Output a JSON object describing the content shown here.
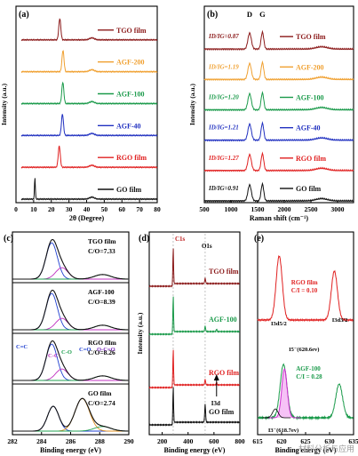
{
  "panels": [
    {
      "letter": "(a)",
      "xlabel": "2θ (Degree)",
      "ylabel": "Intensity (a.u.)",
      "xlim": [
        0,
        80
      ],
      "xticks": [
        0,
        10,
        20,
        30,
        40,
        50,
        60,
        70,
        80
      ],
      "series": [
        {
          "name": "TGO film",
          "color": "#8b1a1a",
          "peak": 24.8
        },
        {
          "name": "AGF-200",
          "color": "#f0a030",
          "peak": 26.6
        },
        {
          "name": "AGF-100",
          "color": "#1a9a4a",
          "peak": 26.5
        },
        {
          "name": "AGF-40",
          "color": "#2030c0",
          "peak": 26.3
        },
        {
          "name": "RGO film",
          "color": "#e02020",
          "peak": 24.5
        },
        {
          "name": "GO film",
          "color": "#111111",
          "peak": 10.7
        }
      ]
    },
    {
      "letter": "(b)",
      "xlabel": "Raman shift (cm⁻¹)",
      "ylabel": "Intensity (a.u.)",
      "xlim": [
        500,
        3300
      ],
      "xticks": [
        500,
        1000,
        1500,
        2000,
        2500,
        3000
      ],
      "band_labels": [
        "D",
        "G"
      ],
      "bands": [
        1350,
        1590
      ],
      "series": [
        {
          "name": "TGO film",
          "color": "#8b1a1a",
          "ratio": "ID/IG=0.87"
        },
        {
          "name": "AGF-200",
          "color": "#f0a030",
          "ratio": "ID/IG=1.19"
        },
        {
          "name": "AGF-100",
          "color": "#1a9a4a",
          "ratio": "ID/IG=1.20"
        },
        {
          "name": "AGF-40",
          "color": "#2030c0",
          "ratio": "ID/IG=1.21"
        },
        {
          "name": "RGO film",
          "color": "#e02020",
          "ratio": "ID/IG=1.27"
        },
        {
          "name": "GO film",
          "color": "#111111",
          "ratio": "ID/IG=0.91"
        }
      ]
    },
    {
      "letter": "(c)",
      "xlabel": "Binding energy (eV)",
      "xlim": [
        282,
        290
      ],
      "xticks": [
        282,
        284,
        286,
        288,
        290
      ],
      "series": [
        {
          "name": "TGO film",
          "ratio": "C/O=7.33"
        },
        {
          "name": "AGF-100",
          "ratio": "C/O=8.39"
        },
        {
          "name": "RGO film",
          "ratio": "C/O=8.26"
        },
        {
          "name": "GO film",
          "ratio": "C/O=2.74"
        }
      ],
      "peak_labels": [
        "C=C",
        "C-C",
        "C-O",
        "C=O",
        "O-C=O"
      ]
    },
    {
      "letter": "(d)",
      "xlabel": "Binding energy (eV)",
      "xlim": [
        100,
        800
      ],
      "xticks": [
        200,
        400,
        600,
        800
      ],
      "peak_labels": [
        "C1s",
        "O1s",
        "I3d"
      ],
      "series": [
        {
          "name": "TGO film",
          "color": "#8b1a1a"
        },
        {
          "name": "AGF-100",
          "color": "#1a9a4a"
        },
        {
          "name": "RGO film",
          "color": "#e02020"
        },
        {
          "name": "GO film",
          "color": "#111111"
        }
      ]
    },
    {
      "letter": "(e)",
      "xlabel": "Binding energy (eV)",
      "xlim": [
        615,
        635
      ],
      "xticks": [
        615,
        620,
        625,
        630,
        635
      ],
      "labels": [
        "I3d5/2",
        "I3d3/2",
        "I5⁻(620.6ev)",
        "I3⁻(618.7ev)"
      ],
      "series": [
        {
          "name": "RGO film",
          "ratio": "C/I = 0.10",
          "color": "#e02020"
        },
        {
          "name": "AGF-100",
          "ratio": "C/I = 0.28",
          "color": "#1a9a4a"
        }
      ]
    }
  ],
  "watermark": "材料分析与应用"
}
